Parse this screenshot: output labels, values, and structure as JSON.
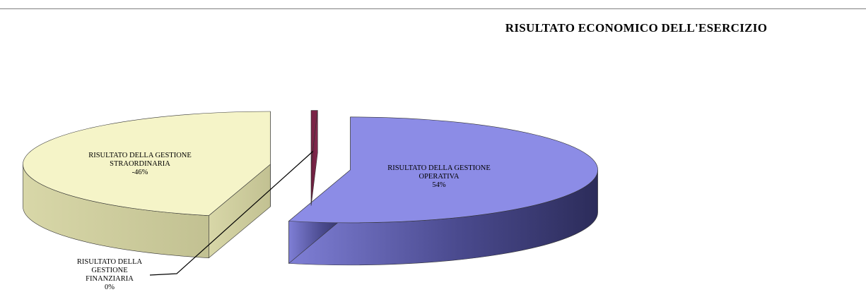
{
  "chart_data": {
    "type": "pie",
    "style": "3d-exploded",
    "title": "RISULTATO ECONOMICO DELL'ESERCIZIO",
    "categories": [
      "RISULTATO DELLA GESTIONE OPERATIVA",
      "RISULTATO DELLA GESTIONE STRAORDINARIA",
      "RISULTATO DELLA GESTIONE FINANZIARIA"
    ],
    "values": [
      54,
      -46,
      0
    ],
    "unit": "%",
    "colors": [
      "#8c8ce6",
      "#f5f4c8",
      "#7a2446"
    ],
    "legend": "none",
    "slices": [
      {
        "label_lines": [
          "RISULTATO DELLA GESTIONE",
          "OPERATIVA"
        ],
        "value_text": "54%"
      },
      {
        "label_lines": [
          "RISULTATO DELLA GESTIONE",
          "STRAORDINARIA"
        ],
        "value_text": "-46%"
      },
      {
        "label_lines": [
          "RISULTATO DELLA",
          "GESTIONE",
          "FINANZIARIA"
        ],
        "value_text": "0%"
      }
    ]
  }
}
